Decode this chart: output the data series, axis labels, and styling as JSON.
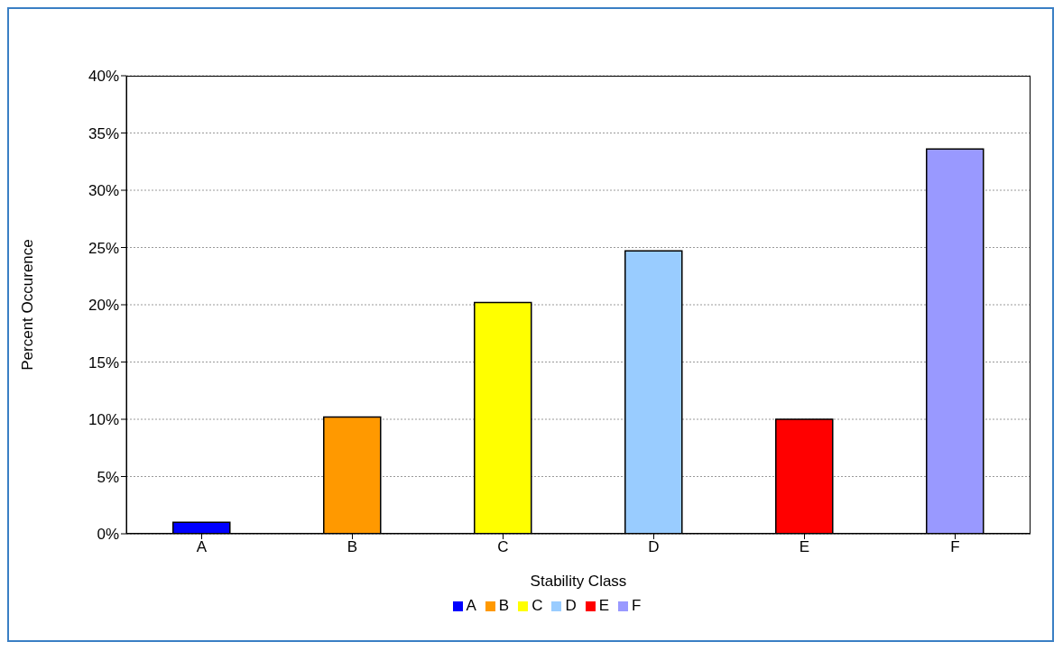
{
  "chart_data": {
    "type": "bar",
    "xlabel": "Stability Class",
    "ylabel": "Percent Occurence",
    "categories": [
      "A",
      "B",
      "C",
      "D",
      "E",
      "F"
    ],
    "series": [
      {
        "name": "A",
        "color": "#0000ff",
        "values": [
          1.0,
          null,
          null,
          null,
          null,
          null
        ]
      },
      {
        "name": "B",
        "color": "#ff9900",
        "values": [
          null,
          10.2,
          null,
          null,
          null,
          null
        ]
      },
      {
        "name": "C",
        "color": "#ffff00",
        "values": [
          null,
          null,
          20.2,
          null,
          null,
          null
        ]
      },
      {
        "name": "D",
        "color": "#99ccff",
        "values": [
          null,
          null,
          null,
          24.7,
          null,
          null
        ]
      },
      {
        "name": "E",
        "color": "#ff0000",
        "values": [
          null,
          null,
          null,
          null,
          10.0,
          null
        ]
      },
      {
        "name": "F",
        "color": "#9999ff",
        "values": [
          null,
          null,
          null,
          null,
          null,
          33.6
        ]
      }
    ],
    "stacked": true,
    "ylim": [
      0,
      40
    ],
    "yticks": [
      {
        "value": 0,
        "label": "0%"
      },
      {
        "value": 5,
        "label": "5%"
      },
      {
        "value": 10,
        "label": "10%"
      },
      {
        "value": 15,
        "label": "15%"
      },
      {
        "value": 20,
        "label": "20%"
      },
      {
        "value": 25,
        "label": "25%"
      },
      {
        "value": 30,
        "label": "30%"
      },
      {
        "value": 35,
        "label": "35%"
      },
      {
        "value": 40,
        "label": "40%"
      }
    ],
    "grid": "y",
    "legend": "bottom"
  }
}
